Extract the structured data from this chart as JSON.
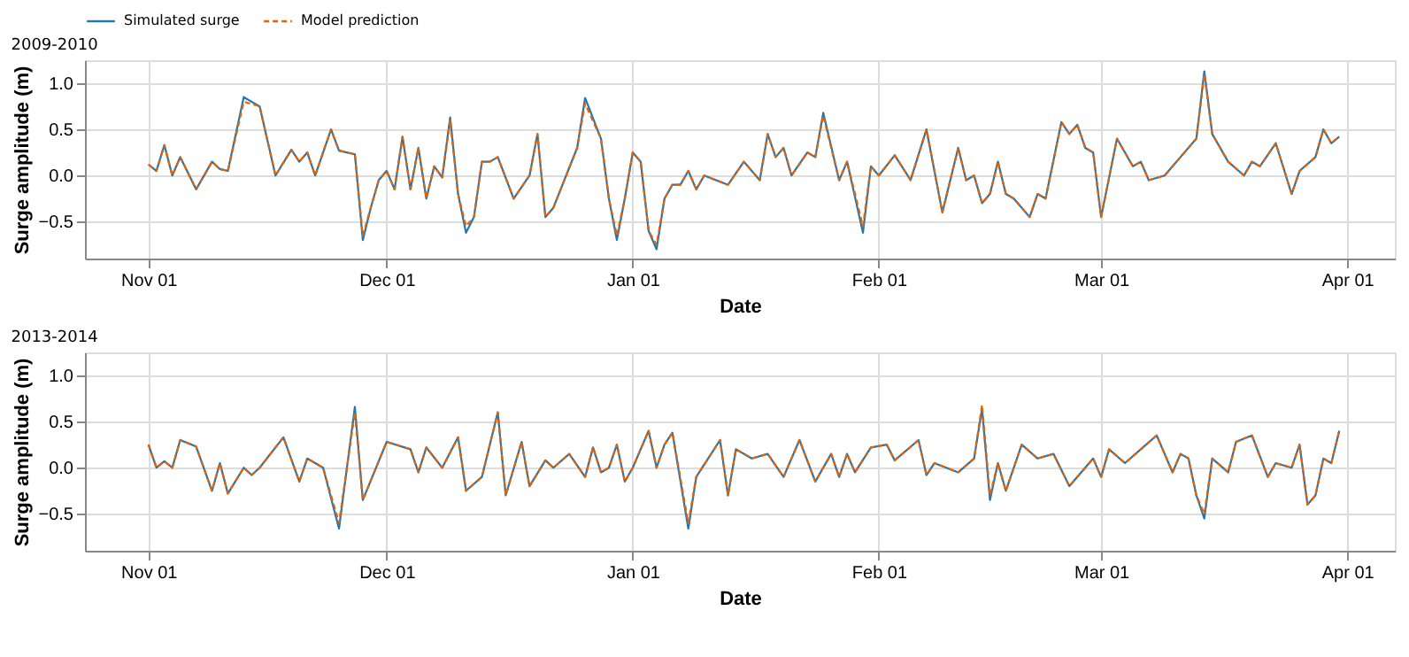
{
  "chart_data": [
    {
      "type": "line",
      "title": "2009-2010",
      "xlabel": "Date",
      "ylabel": "Surge amplitude (m)",
      "grid": true,
      "legend": "top",
      "marker": "none",
      "x": [
        "2009-11-01",
        "2009-11-02",
        "2009-11-03",
        "2009-11-04",
        "2009-11-05",
        "2009-11-07",
        "2009-11-09",
        "2009-11-10",
        "2009-11-11",
        "2009-11-13",
        "2009-11-15",
        "2009-11-17",
        "2009-11-19",
        "2009-11-20",
        "2009-11-21",
        "2009-11-22",
        "2009-11-24",
        "2009-11-25",
        "2009-11-27",
        "2009-11-28",
        "2009-11-29",
        "2009-11-30",
        "2009-12-01",
        "2009-12-02",
        "2009-12-03",
        "2009-12-04",
        "2009-12-05",
        "2009-12-06",
        "2009-12-07",
        "2009-12-08",
        "2009-12-09",
        "2009-12-10",
        "2009-12-11",
        "2009-12-12",
        "2009-12-13",
        "2009-12-14",
        "2009-12-15",
        "2009-12-17",
        "2009-12-19",
        "2009-12-20",
        "2009-12-21",
        "2009-12-22",
        "2009-12-25",
        "2009-12-26",
        "2009-12-28",
        "2009-12-29",
        "2009-12-30",
        "2009-12-31",
        "2010-01-01",
        "2010-01-02",
        "2010-01-03",
        "2010-01-04",
        "2010-01-05",
        "2010-01-06",
        "2010-01-07",
        "2010-01-08",
        "2010-01-09",
        "2010-01-10",
        "2010-01-13",
        "2010-01-15",
        "2010-01-17",
        "2010-01-18",
        "2010-01-19",
        "2010-01-20",
        "2010-01-21",
        "2010-01-23",
        "2010-01-24",
        "2010-01-25",
        "2010-01-27",
        "2010-01-28",
        "2010-01-30",
        "2010-01-31",
        "2010-02-01",
        "2010-02-03",
        "2010-02-05",
        "2010-02-07",
        "2010-02-09",
        "2010-02-11",
        "2010-02-12",
        "2010-02-13",
        "2010-02-14",
        "2010-02-15",
        "2010-02-16",
        "2010-02-17",
        "2010-02-18",
        "2010-02-20",
        "2010-02-21",
        "2010-02-22",
        "2010-02-24",
        "2010-02-25",
        "2010-02-26",
        "2010-02-27",
        "2010-02-28",
        "2010-03-01",
        "2010-03-03",
        "2010-03-05",
        "2010-03-06",
        "2010-03-07",
        "2010-03-09",
        "2010-03-11",
        "2010-03-13",
        "2010-03-14",
        "2010-03-15",
        "2010-03-17",
        "2010-03-19",
        "2010-03-20",
        "2010-03-21",
        "2010-03-23",
        "2010-03-25",
        "2010-03-26",
        "2010-03-28",
        "2010-03-29",
        "2010-03-30",
        "2010-03-31"
      ],
      "xlim": [
        "2009-10-24",
        "2010-04-07"
      ],
      "xticks": [
        {
          "value": "2009-11-01",
          "label": "Nov 01"
        },
        {
          "value": "2009-12-01",
          "label": "Dec 01"
        },
        {
          "value": "2010-01-01",
          "label": "Jan 01"
        },
        {
          "value": "2010-02-01",
          "label": "Feb 01"
        },
        {
          "value": "2010-03-01",
          "label": "Mar 01"
        },
        {
          "value": "2010-04-01",
          "label": "Apr 01"
        }
      ],
      "ylim": [
        -0.9,
        1.25
      ],
      "yticks": [
        {
          "value": -0.5,
          "label": "−0.5"
        },
        {
          "value": 0,
          "label": "0.0"
        },
        {
          "value": 0.5,
          "label": "0.5"
        },
        {
          "value": 1,
          "label": "1.0"
        }
      ],
      "series": [
        {
          "name": "Simulated surge",
          "color": "#1f77b4",
          "line_style": "solid",
          "values": [
            0.12,
            0.05,
            0.33,
            0.0,
            0.2,
            -0.15,
            0.15,
            0.07,
            0.05,
            0.85,
            0.75,
            0.0,
            0.28,
            0.15,
            0.25,
            0.0,
            0.5,
            0.27,
            0.23,
            -0.7,
            -0.35,
            -0.05,
            0.05,
            -0.15,
            0.42,
            -0.15,
            0.3,
            -0.25,
            0.1,
            -0.02,
            0.63,
            -0.2,
            -0.62,
            -0.45,
            0.15,
            0.15,
            0.2,
            -0.25,
            0.0,
            0.45,
            -0.45,
            -0.35,
            0.3,
            0.84,
            0.4,
            -0.25,
            -0.7,
            -0.25,
            0.25,
            0.15,
            -0.6,
            -0.8,
            -0.25,
            -0.1,
            -0.1,
            0.05,
            -0.15,
            0.0,
            -0.1,
            0.15,
            -0.05,
            0.45,
            0.2,
            0.3,
            0.0,
            0.25,
            0.2,
            0.68,
            -0.05,
            0.15,
            -0.62,
            0.1,
            0.0,
            0.22,
            -0.05,
            0.5,
            -0.4,
            0.3,
            -0.05,
            0.0,
            -0.3,
            -0.2,
            0.15,
            -0.2,
            -0.25,
            -0.45,
            -0.2,
            -0.25,
            0.58,
            0.45,
            0.55,
            0.3,
            0.25,
            -0.45,
            0.4,
            0.1,
            0.15,
            -0.05,
            0.0,
            0.2,
            0.4,
            1.13,
            0.45,
            0.15,
            0.0,
            0.15,
            0.1,
            0.35,
            -0.2,
            0.05,
            0.2,
            0.5,
            0.35,
            0.42
          ]
        },
        {
          "name": "Model prediction",
          "color": "#e66101",
          "line_style": "dashed",
          "values": [
            0.12,
            0.05,
            0.33,
            0.0,
            0.2,
            -0.15,
            0.15,
            0.07,
            0.05,
            0.8,
            0.75,
            0.0,
            0.28,
            0.15,
            0.25,
            0.0,
            0.5,
            0.27,
            0.23,
            -0.65,
            -0.35,
            -0.05,
            0.05,
            -0.15,
            0.42,
            -0.15,
            0.3,
            -0.25,
            0.1,
            -0.02,
            0.6,
            -0.2,
            -0.55,
            -0.45,
            0.15,
            0.15,
            0.2,
            -0.25,
            0.0,
            0.45,
            -0.45,
            -0.35,
            0.3,
            0.78,
            0.4,
            -0.25,
            -0.65,
            -0.25,
            0.25,
            0.15,
            -0.6,
            -0.75,
            -0.25,
            -0.1,
            -0.1,
            0.05,
            -0.15,
            0.0,
            -0.1,
            0.15,
            -0.05,
            0.45,
            0.2,
            0.3,
            0.0,
            0.25,
            0.2,
            0.65,
            -0.05,
            0.15,
            -0.55,
            0.1,
            0.0,
            0.22,
            -0.05,
            0.5,
            -0.4,
            0.3,
            -0.05,
            0.0,
            -0.3,
            -0.2,
            0.15,
            -0.2,
            -0.25,
            -0.45,
            -0.2,
            -0.25,
            0.58,
            0.45,
            0.55,
            0.3,
            0.25,
            -0.45,
            0.4,
            0.1,
            0.15,
            -0.05,
            0.0,
            0.2,
            0.4,
            1.1,
            0.45,
            0.15,
            0.0,
            0.15,
            0.1,
            0.35,
            -0.2,
            0.05,
            0.2,
            0.5,
            0.35,
            0.42
          ]
        }
      ]
    },
    {
      "type": "line",
      "title": "2013-2014",
      "xlabel": "Date",
      "ylabel": "Surge amplitude (m)",
      "grid": true,
      "legend": "top",
      "marker": "none",
      "x": [
        "2013-11-01",
        "2013-11-02",
        "2013-11-03",
        "2013-11-04",
        "2013-11-05",
        "2013-11-07",
        "2013-11-09",
        "2013-11-10",
        "2013-11-11",
        "2013-11-13",
        "2013-11-14",
        "2013-11-15",
        "2013-11-18",
        "2013-11-20",
        "2013-11-21",
        "2013-11-23",
        "2013-11-25",
        "2013-11-26",
        "2013-11-27",
        "2013-11-28",
        "2013-12-01",
        "2013-12-04",
        "2013-12-05",
        "2013-12-06",
        "2013-12-08",
        "2013-12-10",
        "2013-12-11",
        "2013-12-13",
        "2013-12-15",
        "2013-12-16",
        "2013-12-18",
        "2013-12-19",
        "2013-12-21",
        "2013-12-22",
        "2013-12-24",
        "2013-12-26",
        "2013-12-27",
        "2013-12-28",
        "2013-12-29",
        "2013-12-30",
        "2013-12-31",
        "2014-01-01",
        "2014-01-03",
        "2014-01-04",
        "2014-01-05",
        "2014-01-06",
        "2014-01-08",
        "2014-01-09",
        "2014-01-12",
        "2014-01-13",
        "2014-01-14",
        "2014-01-16",
        "2014-01-18",
        "2014-01-20",
        "2014-01-22",
        "2014-01-24",
        "2014-01-26",
        "2014-01-27",
        "2014-01-28",
        "2014-01-29",
        "2014-01-31",
        "2014-02-02",
        "2014-02-03",
        "2014-02-06",
        "2014-02-07",
        "2014-02-08",
        "2014-02-11",
        "2014-02-13",
        "2014-02-14",
        "2014-02-15",
        "2014-02-16",
        "2014-02-17",
        "2014-02-19",
        "2014-02-21",
        "2014-02-23",
        "2014-02-25",
        "2014-02-28",
        "2014-03-01",
        "2014-03-02",
        "2014-03-04",
        "2014-03-06",
        "2014-03-08",
        "2014-03-10",
        "2014-03-11",
        "2014-03-12",
        "2014-03-13",
        "2014-03-14",
        "2014-03-15",
        "2014-03-17",
        "2014-03-18",
        "2014-03-20",
        "2014-03-22",
        "2014-03-23",
        "2014-03-25",
        "2014-03-26",
        "2014-03-27",
        "2014-03-28",
        "2014-03-29",
        "2014-03-30",
        "2014-03-31"
      ],
      "xlim": [
        "2013-10-24",
        "2014-04-07"
      ],
      "xticks": [
        {
          "value": "2013-11-01",
          "label": "Nov 01"
        },
        {
          "value": "2013-12-01",
          "label": "Dec 01"
        },
        {
          "value": "2014-01-01",
          "label": "Jan 01"
        },
        {
          "value": "2014-02-01",
          "label": "Feb 01"
        },
        {
          "value": "2014-03-01",
          "label": "Mar 01"
        },
        {
          "value": "2014-04-01",
          "label": "Apr 01"
        }
      ],
      "ylim": [
        -0.9,
        1.25
      ],
      "yticks": [
        {
          "value": -0.5,
          "label": "−0.5"
        },
        {
          "value": 0,
          "label": "0.0"
        },
        {
          "value": 0.5,
          "label": "0.5"
        },
        {
          "value": 1,
          "label": "1.0"
        }
      ],
      "series": [
        {
          "name": "Simulated surge",
          "color": "#1f77b4",
          "line_style": "solid",
          "values": [
            0.25,
            0.0,
            0.07,
            0.0,
            0.3,
            0.23,
            -0.25,
            0.05,
            -0.28,
            0.0,
            -0.08,
            0.0,
            0.33,
            -0.15,
            0.1,
            0.0,
            -0.66,
            0.0,
            0.66,
            -0.35,
            0.28,
            0.2,
            -0.05,
            0.22,
            0.0,
            0.33,
            -0.25,
            -0.1,
            0.6,
            -0.3,
            0.28,
            -0.2,
            0.08,
            0.0,
            0.15,
            -0.1,
            0.22,
            -0.05,
            0.0,
            0.25,
            -0.15,
            0.0,
            0.4,
            0.0,
            0.25,
            0.38,
            -0.66,
            -0.1,
            0.3,
            -0.3,
            0.2,
            0.1,
            0.15,
            -0.1,
            0.3,
            -0.15,
            0.15,
            -0.1,
            0.15,
            -0.05,
            0.22,
            0.25,
            0.08,
            0.3,
            -0.08,
            0.05,
            -0.05,
            0.1,
            0.64,
            -0.35,
            0.05,
            -0.25,
            0.25,
            0.1,
            0.15,
            -0.2,
            0.1,
            -0.1,
            0.2,
            0.05,
            0.2,
            0.35,
            -0.05,
            0.15,
            0.1,
            -0.3,
            -0.55,
            0.1,
            -0.05,
            0.28,
            0.35,
            -0.1,
            0.05,
            0.0,
            0.25,
            -0.4,
            -0.3,
            0.1,
            0.05,
            0.4
          ]
        },
        {
          "name": "Model prediction",
          "color": "#e66101",
          "line_style": "dashed",
          "values": [
            0.25,
            0.0,
            0.07,
            0.0,
            0.3,
            0.23,
            -0.25,
            0.05,
            -0.28,
            0.0,
            -0.08,
            0.0,
            0.33,
            -0.15,
            0.1,
            0.0,
            -0.6,
            0.0,
            0.6,
            -0.35,
            0.28,
            0.2,
            -0.05,
            0.22,
            0.0,
            0.33,
            -0.25,
            -0.1,
            0.6,
            -0.3,
            0.28,
            -0.2,
            0.08,
            0.0,
            0.15,
            -0.1,
            0.22,
            -0.05,
            0.0,
            0.25,
            -0.15,
            0.0,
            0.4,
            0.0,
            0.25,
            0.38,
            -0.6,
            -0.1,
            0.3,
            -0.3,
            0.2,
            0.1,
            0.15,
            -0.1,
            0.3,
            -0.15,
            0.15,
            -0.1,
            0.15,
            -0.05,
            0.22,
            0.25,
            0.08,
            0.3,
            -0.08,
            0.05,
            -0.05,
            0.1,
            0.68,
            -0.3,
            0.05,
            -0.25,
            0.25,
            0.1,
            0.15,
            -0.2,
            0.1,
            -0.1,
            0.2,
            0.05,
            0.2,
            0.35,
            -0.05,
            0.15,
            0.1,
            -0.3,
            -0.5,
            0.1,
            -0.05,
            0.28,
            0.35,
            -0.1,
            0.05,
            0.0,
            0.25,
            -0.4,
            -0.3,
            0.1,
            0.05,
            0.4
          ]
        }
      ]
    }
  ]
}
